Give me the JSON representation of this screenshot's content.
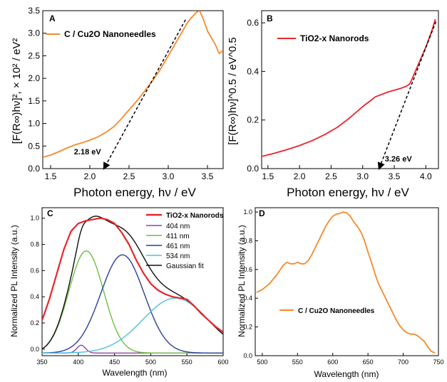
{
  "chart_data": [
    {
      "type": "line",
      "panel_label": "A",
      "xlabel": "Photon energy, hν / eV",
      "ylabel": "[F(R∞)hν]², × 10² / eV²",
      "xlim": [
        1.4,
        3.7
      ],
      "ylim": [
        0,
        3.5
      ],
      "xticks": [
        1.5,
        2.0,
        2.5,
        3.0,
        3.5
      ],
      "yticks": [
        0.0,
        0.5,
        1.0,
        1.5,
        2.0,
        2.5,
        3.0,
        3.5
      ],
      "series": [
        {
          "name": "C / Cu2O Nanoneedles",
          "color": "#f58a2a",
          "x": [
            1.4,
            1.5,
            1.6,
            1.7,
            1.8,
            1.9,
            2.0,
            2.1,
            2.2,
            2.3,
            2.4,
            2.5,
            2.6,
            2.7,
            2.8,
            2.9,
            3.0,
            3.1,
            3.2,
            3.25,
            3.3,
            3.35,
            3.4,
            3.45,
            3.5,
            3.55,
            3.6,
            3.65,
            3.7
          ],
          "y": [
            0.25,
            0.3,
            0.37,
            0.45,
            0.52,
            0.57,
            0.63,
            0.7,
            0.8,
            0.92,
            1.1,
            1.3,
            1.5,
            1.72,
            1.95,
            2.2,
            2.5,
            2.8,
            3.1,
            3.25,
            3.35,
            3.45,
            3.5,
            3.3,
            3.05,
            2.9,
            2.75,
            2.55,
            2.62
          ]
        }
      ],
      "annotations": [
        {
          "text": "2.18 eV",
          "x": 2.18,
          "y": 0.0,
          "type": "tangent-intercept",
          "line": {
            "x0": 3.22,
            "y0": 3.3,
            "x1": 2.18,
            "y1": 0.0
          }
        }
      ]
    },
    {
      "type": "line",
      "panel_label": "B",
      "xlabel": "Photon energy, hν / eV",
      "ylabel": "[F(R∞)hν]^0.5 / eV^0.5",
      "xlim": [
        1.4,
        4.2
      ],
      "ylim": [
        0,
        0.65
      ],
      "xticks": [
        1.5,
        2.0,
        2.5,
        3.0,
        3.5,
        4.0
      ],
      "yticks": [
        0.0,
        0.2,
        0.4,
        0.6
      ],
      "series": [
        {
          "name": "TiO2-x Nanorods",
          "color": "#e8252b",
          "x": [
            1.4,
            1.6,
            1.8,
            2.0,
            2.2,
            2.4,
            2.6,
            2.8,
            3.0,
            3.1,
            3.2,
            3.4,
            3.6,
            3.7,
            3.75,
            3.8,
            3.9,
            4.0,
            4.1,
            4.15
          ],
          "y": [
            0.05,
            0.063,
            0.078,
            0.095,
            0.115,
            0.14,
            0.17,
            0.21,
            0.255,
            0.275,
            0.295,
            0.315,
            0.33,
            0.34,
            0.35,
            0.38,
            0.44,
            0.5,
            0.57,
            0.615
          ]
        }
      ],
      "annotations": [
        {
          "text": "3.26 eV",
          "x": 3.26,
          "y": 0.0,
          "type": "tangent-intercept",
          "line": {
            "x0": 4.16,
            "y0": 0.605,
            "x1": 3.26,
            "y1": 0.0
          }
        }
      ]
    },
    {
      "type": "line",
      "panel_label": "C",
      "xlabel": "Wavelength (nm)",
      "ylabel": "Normalized PL Intensity (a.u.)",
      "xlim": [
        350,
        600
      ],
      "ylim": [
        -0.05,
        1.08
      ],
      "xticks": [
        350,
        400,
        450,
        500,
        550,
        600
      ],
      "yticks": [
        0.0,
        0.2,
        0.4,
        0.6,
        0.8,
        1.0
      ],
      "series": [
        {
          "name": "TiO2-x Nanorods",
          "color": "#e8252b",
          "x": [
            350,
            360,
            370,
            380,
            390,
            400,
            410,
            420,
            430,
            440,
            450,
            460,
            470,
            480,
            490,
            500,
            510,
            520,
            530,
            540,
            550,
            560,
            570,
            580,
            590,
            600
          ],
          "y": [
            0.22,
            0.38,
            0.57,
            0.76,
            0.9,
            0.96,
            0.98,
            0.99,
            1.0,
            0.99,
            0.96,
            0.89,
            0.8,
            0.68,
            0.58,
            0.5,
            0.45,
            0.42,
            0.4,
            0.39,
            0.38,
            0.33,
            0.27,
            0.22,
            0.17,
            0.13
          ]
        },
        {
          "name": "404 nm",
          "color": "#8e44ad",
          "gaussian": {
            "center": 404,
            "sigma": 6,
            "amplitude": 0.06
          }
        },
        {
          "name": "411 nm",
          "color": "#6cbf3c",
          "gaussian": {
            "center": 411,
            "sigma": 24,
            "amplitude": 0.78
          }
        },
        {
          "name": "461 nm",
          "color": "#2c3e9a",
          "gaussian": {
            "center": 461,
            "sigma": 30,
            "amplitude": 0.75
          }
        },
        {
          "name": "534 nm",
          "color": "#48c4e0",
          "gaussian": {
            "center": 534,
            "sigma": 45,
            "amplitude": 0.42
          }
        },
        {
          "name": "Gaussian fit",
          "color": "#111111",
          "sum_of_gaussians": true
        }
      ],
      "baseline": -0.03,
      "legend": "top-right"
    },
    {
      "type": "line",
      "panel_label": "D",
      "xlabel": "Wavelength (nm)",
      "ylabel": "Normalized PL Intensity (a.u.)",
      "xlim": [
        490,
        750
      ],
      "ylim": [
        0,
        1.03
      ],
      "xticks": [
        500,
        550,
        600,
        650,
        700,
        750
      ],
      "yticks": [
        0.0,
        0.2,
        0.4,
        0.6,
        0.8,
        1.0
      ],
      "series": [
        {
          "name": "C / Cu2O Nanoneedles",
          "color": "#f58a2a",
          "x": [
            492,
            500,
            510,
            520,
            530,
            535,
            540,
            545,
            550,
            555,
            560,
            565,
            570,
            575,
            580,
            585,
            590,
            595,
            600,
            605,
            610,
            615,
            620,
            625,
            630,
            635,
            640,
            645,
            650,
            655,
            660,
            665,
            670,
            675,
            680,
            685,
            690,
            695,
            700,
            705,
            710,
            715,
            720,
            725,
            730,
            735,
            740,
            745
          ],
          "y": [
            0.44,
            0.46,
            0.5,
            0.56,
            0.63,
            0.65,
            0.64,
            0.64,
            0.65,
            0.64,
            0.64,
            0.66,
            0.7,
            0.75,
            0.8,
            0.85,
            0.9,
            0.94,
            0.97,
            0.985,
            0.99,
            1.0,
            0.995,
            0.97,
            0.93,
            0.9,
            0.86,
            0.8,
            0.72,
            0.65,
            0.57,
            0.5,
            0.45,
            0.4,
            0.35,
            0.3,
            0.25,
            0.21,
            0.18,
            0.16,
            0.15,
            0.15,
            0.14,
            0.12,
            0.1,
            0.06,
            0.03,
            0.02
          ]
        }
      ],
      "legend": "center-left"
    }
  ]
}
